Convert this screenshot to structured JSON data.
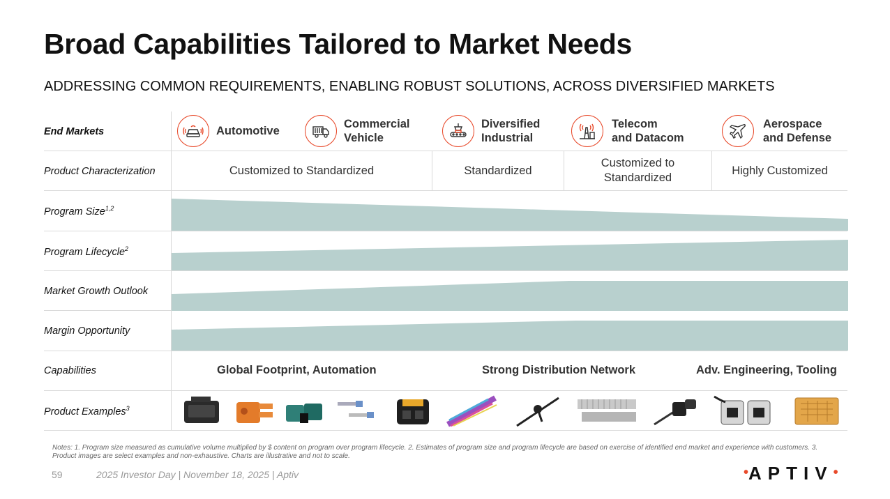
{
  "title": "Broad Capabilities Tailored to Market Needs",
  "subtitle": "ADDRESSING COMMON REQUIREMENTS, ENABLING ROBUST SOLUTIONS, ACROSS DIVERSIFIED MARKETS",
  "rows": {
    "end_markets": "End Markets",
    "product_characterization": "Product Characterization",
    "program_size": "Program Size",
    "program_size_sup": "1,2",
    "program_lifecycle": "Program Lifecycle",
    "program_lifecycle_sup": "2",
    "market_growth": "Market Growth Outlook",
    "margin_opportunity": "Margin Opportunity",
    "capabilities": "Capabilities",
    "product_examples": "Product Examples",
    "product_examples_sup": "3"
  },
  "markets": {
    "automotive": "Automotive",
    "commercial_1": "Commercial",
    "commercial_2": "Vehicle",
    "diversified_1": "Diversified",
    "diversified_2": "Industrial",
    "telecom_1": "Telecom",
    "telecom_2": "and Datacom",
    "aero_1": "Aerospace",
    "aero_2": "and Defense"
  },
  "characterization": {
    "c1": "Customized to Standardized",
    "c2": "Standardized",
    "c3_1": "Customized to",
    "c3_2": "Standardized",
    "c4": "Highly Customized"
  },
  "band_levels": {
    "note": "relative band thickness (0-1) at left and right ends",
    "program_size": [
      1.0,
      0.35
    ],
    "program_lifecycle": [
      0.55,
      1.0
    ],
    "market_growth": [
      0.55,
      1.0
    ],
    "margin_opportunity": [
      0.7,
      1.0
    ]
  },
  "capabilities": {
    "c1": "Global Footprint, Automation",
    "c2": "Strong Distribution Network",
    "c3": "Adv. Engineering, Tooling"
  },
  "notes": "Notes: 1. Program size measured as cumulative volume multiplied by $ content on program over program lifecycle. 2. Estimates of program size and program lifecycle are based on exercise of identified end market and experience with customers. 3. Product images are select examples and non-exhaustive. Charts are illustrative and not to scale.",
  "footer": {
    "page": "59",
    "text": "2025 Investor Day | November 18, 2025 | Aptiv"
  },
  "logo": "APTIV",
  "colors": {
    "accent": "#e8492a",
    "band": "#b8d0ce"
  }
}
